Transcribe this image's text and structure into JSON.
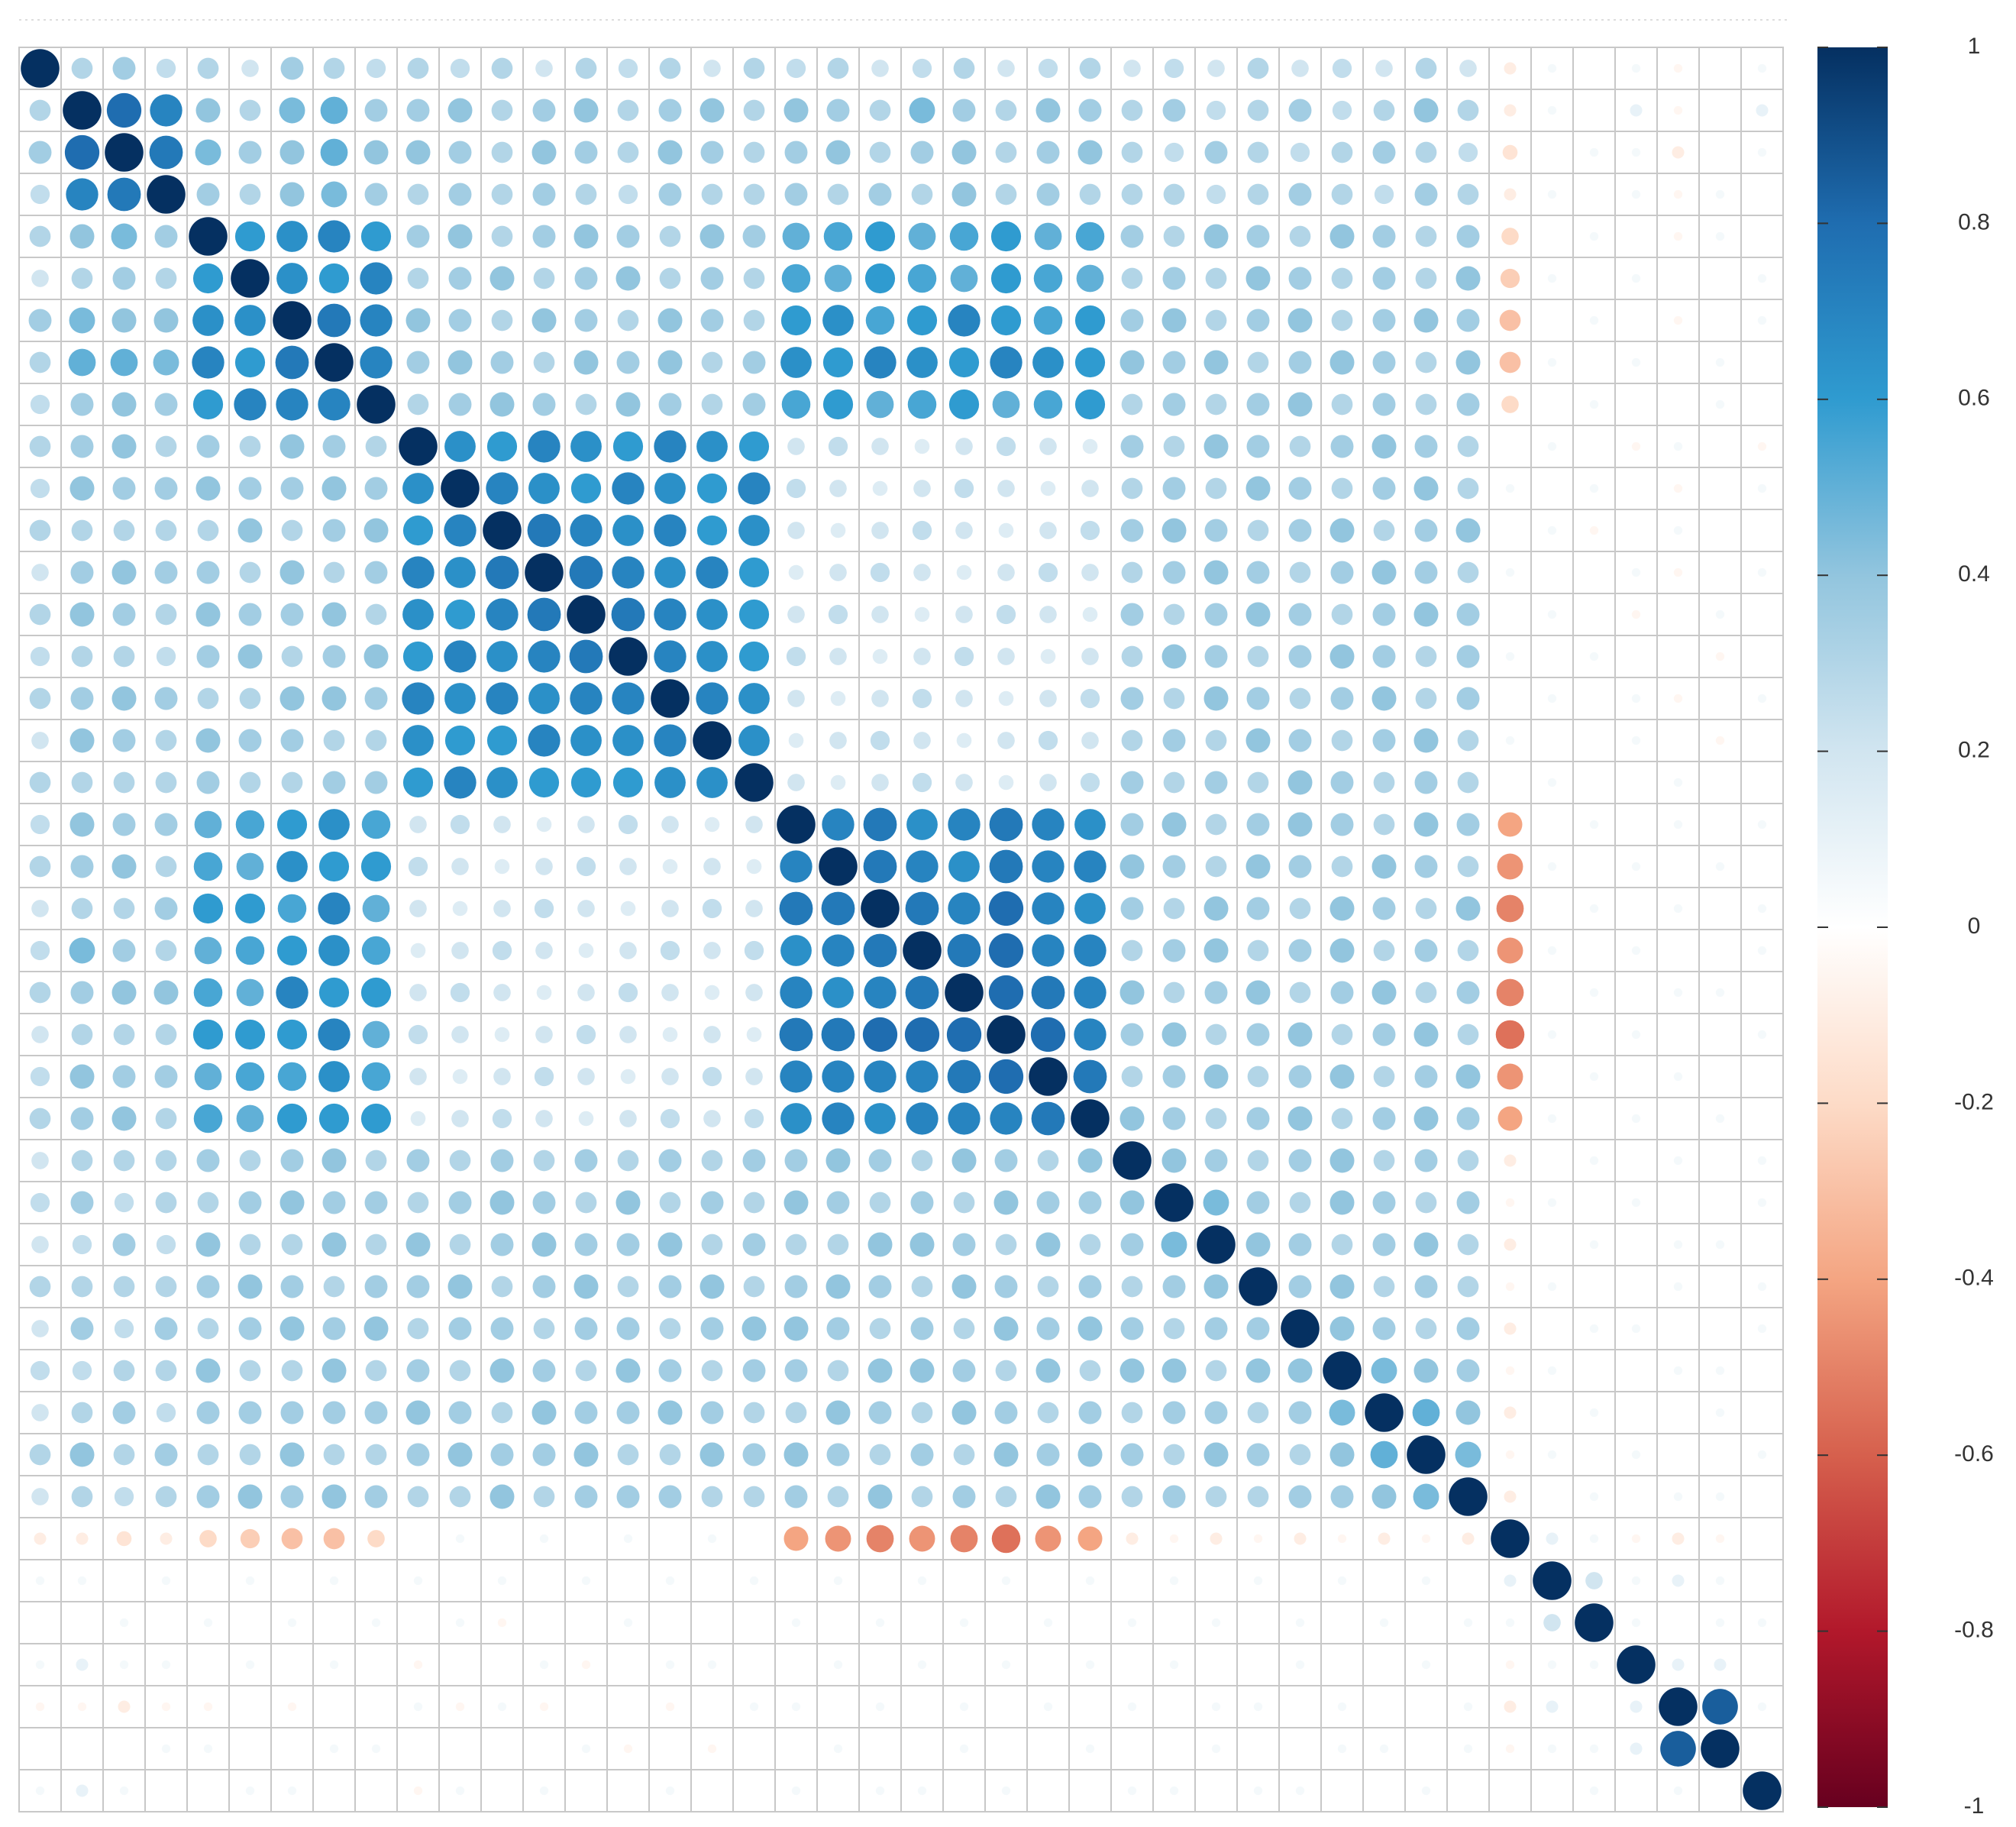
{
  "chart_data": {
    "type": "corrplot",
    "method": "circle",
    "colors": [
      "#67001F",
      "#B2182B",
      "#D6604D",
      "#F4A582",
      "#FDDBC7",
      "#FFFFFF",
      "#D1E5F0",
      "#92C5DE",
      "#2F9BD0",
      "#1F6DB0",
      "#053061"
    ],
    "clim": [
      -1,
      1
    ],
    "cticks": [
      1,
      0.8,
      0.6,
      0.4,
      0.2,
      0,
      -0.2,
      -0.4,
      -0.6,
      -0.8,
      -1
    ],
    "values": [
      [
        1,
        0.3,
        0.35,
        0.25,
        0.3,
        0.2,
        0.35,
        0.3,
        0.25,
        0.3,
        0.25,
        0.3,
        0.2,
        0.3,
        0.25,
        0.3,
        0.2,
        0.3,
        0.25,
        0.3,
        0.2,
        0.25,
        0.3,
        0.2,
        0.25,
        0.3,
        0.2,
        0.25,
        0.2,
        0.3,
        0.2,
        0.25,
        0.2,
        0.3,
        0.2,
        -0.1,
        0.05,
        0,
        0.05,
        -0.05,
        0,
        0.05
      ],
      [
        1,
        0.8,
        0.7,
        0.4,
        0.3,
        0.45,
        0.5,
        0.35,
        0.35,
        0.4,
        0.3,
        0.35,
        0.4,
        0.3,
        0.35,
        0.4,
        0.3,
        0.4,
        0.35,
        0.3,
        0.45,
        0.35,
        0.3,
        0.4,
        0.35,
        0.3,
        0.35,
        0.25,
        0.3,
        0.35,
        0.25,
        0.3,
        0.4,
        0.3,
        -0.1,
        0.05,
        0,
        0.1,
        -0.05,
        0,
        0.1
      ],
      [
        1,
        0.75,
        0.45,
        0.35,
        0.4,
        0.5,
        0.4,
        0.4,
        0.35,
        0.3,
        0.4,
        0.35,
        0.3,
        0.4,
        0.35,
        0.3,
        0.35,
        0.4,
        0.3,
        0.35,
        0.4,
        0.3,
        0.35,
        0.4,
        0.3,
        0.25,
        0.35,
        0.3,
        0.25,
        0.3,
        0.35,
        0.3,
        0.25,
        -0.15,
        0,
        0.05,
        0.05,
        -0.1,
        0,
        0.05
      ],
      [
        1,
        0.35,
        0.3,
        0.4,
        0.45,
        0.35,
        0.3,
        0.35,
        0.3,
        0.35,
        0.3,
        0.25,
        0.35,
        0.3,
        0.3,
        0.35,
        0.3,
        0.35,
        0.3,
        0.4,
        0.3,
        0.35,
        0.3,
        0.3,
        0.3,
        0.25,
        0.3,
        0.35,
        0.3,
        0.25,
        0.35,
        0.3,
        -0.1,
        0.05,
        0,
        0.05,
        -0.05,
        0.05,
        0
      ],
      [
        1,
        0.6,
        0.65,
        0.7,
        0.6,
        0.35,
        0.4,
        0.3,
        0.35,
        0.4,
        0.35,
        0.3,
        0.4,
        0.35,
        0.5,
        0.55,
        0.6,
        0.5,
        0.55,
        0.6,
        0.5,
        0.55,
        0.35,
        0.3,
        0.4,
        0.35,
        0.3,
        0.4,
        0.35,
        0.3,
        0.35,
        -0.2,
        0,
        0.05,
        0,
        -0.05,
        0.05,
        0
      ],
      [
        1,
        0.65,
        0.6,
        0.7,
        0.3,
        0.35,
        0.4,
        0.3,
        0.35,
        0.4,
        0.3,
        0.35,
        0.3,
        0.55,
        0.5,
        0.6,
        0.55,
        0.5,
        0.6,
        0.55,
        0.5,
        0.3,
        0.35,
        0.3,
        0.4,
        0.35,
        0.3,
        0.35,
        0.3,
        0.4,
        -0.25,
        0.05,
        0,
        0.05,
        0,
        0,
        0.05
      ],
      [
        1,
        0.75,
        0.7,
        0.4,
        0.35,
        0.3,
        0.4,
        0.35,
        0.3,
        0.4,
        0.35,
        0.3,
        0.6,
        0.65,
        0.55,
        0.6,
        0.7,
        0.6,
        0.55,
        0.6,
        0.35,
        0.4,
        0.3,
        0.35,
        0.4,
        0.3,
        0.35,
        0.4,
        0.35,
        -0.3,
        0,
        0.05,
        0,
        -0.05,
        0,
        0.05
      ],
      [
        1,
        0.7,
        0.35,
        0.4,
        0.35,
        0.3,
        0.4,
        0.35,
        0.4,
        0.3,
        0.35,
        0.65,
        0.6,
        0.7,
        0.65,
        0.6,
        0.7,
        0.65,
        0.6,
        0.4,
        0.35,
        0.4,
        0.3,
        0.35,
        0.4,
        0.35,
        0.3,
        0.4,
        -0.3,
        0.05,
        0,
        0.05,
        0,
        0.05,
        0
      ],
      [
        1,
        0.3,
        0.35,
        0.4,
        0.35,
        0.3,
        0.4,
        0.35,
        0.3,
        0.35,
        0.55,
        0.6,
        0.5,
        0.55,
        0.6,
        0.5,
        0.55,
        0.6,
        0.3,
        0.35,
        0.3,
        0.35,
        0.4,
        0.3,
        0.35,
        0.3,
        0.35,
        -0.2,
        0,
        0.05,
        0,
        0,
        0.05,
        0
      ],
      [
        1,
        0.65,
        0.6,
        0.7,
        0.65,
        0.6,
        0.7,
        0.65,
        0.6,
        0.2,
        0.25,
        0.2,
        0.15,
        0.2,
        0.25,
        0.2,
        0.15,
        0.35,
        0.3,
        0.4,
        0.35,
        0.3,
        0.35,
        0.4,
        0.35,
        0.3,
        0,
        0.05,
        0,
        -0.05,
        0.05,
        0,
        -0.05
      ],
      [
        1,
        0.7,
        0.65,
        0.6,
        0.7,
        0.65,
        0.6,
        0.7,
        0.25,
        0.2,
        0.15,
        0.2,
        0.25,
        0.2,
        0.15,
        0.2,
        0.3,
        0.35,
        0.3,
        0.4,
        0.35,
        0.3,
        0.35,
        0.4,
        0.3,
        0.05,
        0,
        0.05,
        0,
        -0.05,
        0,
        0.05
      ],
      [
        1,
        0.75,
        0.7,
        0.65,
        0.7,
        0.6,
        0.65,
        0.2,
        0.15,
        0.2,
        0.25,
        0.2,
        0.15,
        0.2,
        0.25,
        0.35,
        0.4,
        0.35,
        0.3,
        0.35,
        0.4,
        0.3,
        0.35,
        0.4,
        0,
        0.05,
        -0.05,
        0,
        0.05,
        0,
        0
      ],
      [
        1,
        0.75,
        0.7,
        0.65,
        0.7,
        0.6,
        0.15,
        0.2,
        0.25,
        0.2,
        0.15,
        0.2,
        0.25,
        0.2,
        0.3,
        0.35,
        0.4,
        0.35,
        0.3,
        0.35,
        0.4,
        0.35,
        0.3,
        0.05,
        0,
        0,
        0.05,
        -0.05,
        0,
        0.05
      ],
      [
        1,
        0.75,
        0.7,
        0.65,
        0.6,
        0.2,
        0.25,
        0.2,
        0.15,
        0.2,
        0.25,
        0.2,
        0.15,
        0.35,
        0.3,
        0.35,
        0.4,
        0.35,
        0.3,
        0.35,
        0.4,
        0.35,
        0,
        0.05,
        0,
        -0.05,
        0,
        0.05,
        0
      ],
      [
        1,
        0.7,
        0.65,
        0.6,
        0.25,
        0.2,
        0.15,
        0.2,
        0.25,
        0.2,
        0.15,
        0.2,
        0.3,
        0.4,
        0.35,
        0.3,
        0.35,
        0.4,
        0.35,
        0.3,
        0.35,
        0.05,
        0,
        0.05,
        0,
        0,
        -0.05,
        0
      ],
      [
        1,
        0.7,
        0.65,
        0.2,
        0.15,
        0.2,
        0.25,
        0.2,
        0.15,
        0.2,
        0.25,
        0.35,
        0.3,
        0.4,
        0.35,
        0.3,
        0.35,
        0.4,
        0.3,
        0.35,
        0,
        0.05,
        0,
        0.05,
        -0.05,
        0,
        0.05
      ],
      [
        1,
        0.65,
        0.15,
        0.2,
        0.25,
        0.2,
        0.15,
        0.2,
        0.25,
        0.2,
        0.3,
        0.35,
        0.3,
        0.4,
        0.35,
        0.3,
        0.35,
        0.4,
        0.3,
        0.05,
        0,
        0,
        0.05,
        0,
        -0.05,
        0
      ],
      [
        1,
        0.2,
        0.15,
        0.2,
        0.25,
        0.2,
        0.15,
        0.2,
        0.25,
        0.35,
        0.3,
        0.35,
        0.3,
        0.4,
        0.35,
        0.3,
        0.35,
        0.3,
        0,
        0.05,
        0,
        0,
        0.05,
        0,
        0
      ],
      [
        1,
        0.7,
        0.75,
        0.65,
        0.7,
        0.75,
        0.7,
        0.65,
        0.35,
        0.4,
        0.3,
        0.35,
        0.4,
        0.35,
        0.3,
        0.4,
        0.35,
        -0.4,
        0,
        0.05,
        0,
        0.05,
        0,
        0.05
      ],
      [
        1,
        0.75,
        0.7,
        0.65,
        0.75,
        0.7,
        0.7,
        0.4,
        0.35,
        0.3,
        0.4,
        0.35,
        0.3,
        0.4,
        0.35,
        0.3,
        -0.45,
        0.05,
        0,
        0.05,
        0,
        0.05,
        0
      ],
      [
        1,
        0.75,
        0.7,
        0.8,
        0.7,
        0.65,
        0.35,
        0.3,
        0.4,
        0.35,
        0.3,
        0.4,
        0.35,
        0.3,
        0.4,
        -0.5,
        0,
        0.05,
        0,
        0.05,
        0,
        0.05
      ],
      [
        1,
        0.75,
        0.8,
        0.7,
        0.7,
        0.3,
        0.35,
        0.4,
        0.3,
        0.35,
        0.4,
        0.3,
        0.35,
        0.3,
        -0.45,
        0.05,
        0,
        0.05,
        0,
        0,
        0.05
      ],
      [
        1,
        0.8,
        0.75,
        0.7,
        0.4,
        0.3,
        0.35,
        0.4,
        0.3,
        0.35,
        0.4,
        0.3,
        0.35,
        -0.5,
        0,
        0.05,
        0,
        0.05,
        0.05,
        0
      ],
      [
        1,
        0.8,
        0.7,
        0.35,
        0.4,
        0.3,
        0.35,
        0.4,
        0.3,
        0.35,
        0.4,
        0.3,
        -0.55,
        0.05,
        0,
        0.05,
        0,
        0,
        0.05
      ],
      [
        1,
        0.75,
        0.3,
        0.35,
        0.4,
        0.3,
        0.35,
        0.4,
        0.3,
        0.35,
        0.4,
        -0.45,
        0,
        0.05,
        0,
        0.05,
        0,
        0
      ],
      [
        1,
        0.4,
        0.35,
        0.3,
        0.35,
        0.4,
        0.3,
        0.35,
        0.4,
        0.35,
        -0.4,
        0.05,
        0,
        0.05,
        0,
        0.05,
        0
      ],
      [
        1,
        0.4,
        0.35,
        0.3,
        0.35,
        0.4,
        0.3,
        0.35,
        0.3,
        -0.1,
        0,
        0.05,
        0,
        0.05,
        0,
        0.05
      ],
      [
        1,
        0.45,
        0.35,
        0.3,
        0.4,
        0.35,
        0.3,
        0.35,
        -0.05,
        0.05,
        0,
        0.05,
        0,
        0,
        0.05
      ],
      [
        1,
        0.4,
        0.35,
        0.3,
        0.35,
        0.4,
        0.3,
        -0.1,
        0,
        0.05,
        0,
        0.05,
        0.05,
        0
      ],
      [
        1,
        0.35,
        0.4,
        0.3,
        0.35,
        0.3,
        -0.05,
        0.05,
        0,
        0,
        0.05,
        0,
        0.05
      ],
      [
        1,
        0.4,
        0.35,
        0.3,
        0.35,
        -0.1,
        0,
        0.05,
        0.05,
        0,
        0,
        0.05
      ],
      [
        1,
        0.45,
        0.4,
        0.35,
        -0.05,
        0.05,
        0,
        0,
        0.05,
        0.05,
        0
      ],
      [
        1,
        0.5,
        0.4,
        -0.1,
        0,
        0.05,
        0,
        0,
        0.05,
        0
      ],
      [
        1,
        0.45,
        -0.05,
        0.05,
        0,
        0.05,
        0,
        0,
        0.05
      ],
      [
        1,
        -0.1,
        0,
        0.05,
        0,
        0.05,
        0.05,
        0
      ],
      [
        1,
        0.1,
        0.05,
        -0.05,
        -0.1,
        -0.05,
        0
      ],
      [
        1,
        0.2,
        0.05,
        0.1,
        0.05,
        0
      ],
      [
        1,
        0.05,
        0,
        0.05,
        0.05
      ],
      [
        1,
        0.1,
        0.1,
        0
      ],
      [
        1,
        0.85,
        0.05
      ],
      [
        1,
        0
      ],
      [
        1
      ]
    ]
  }
}
